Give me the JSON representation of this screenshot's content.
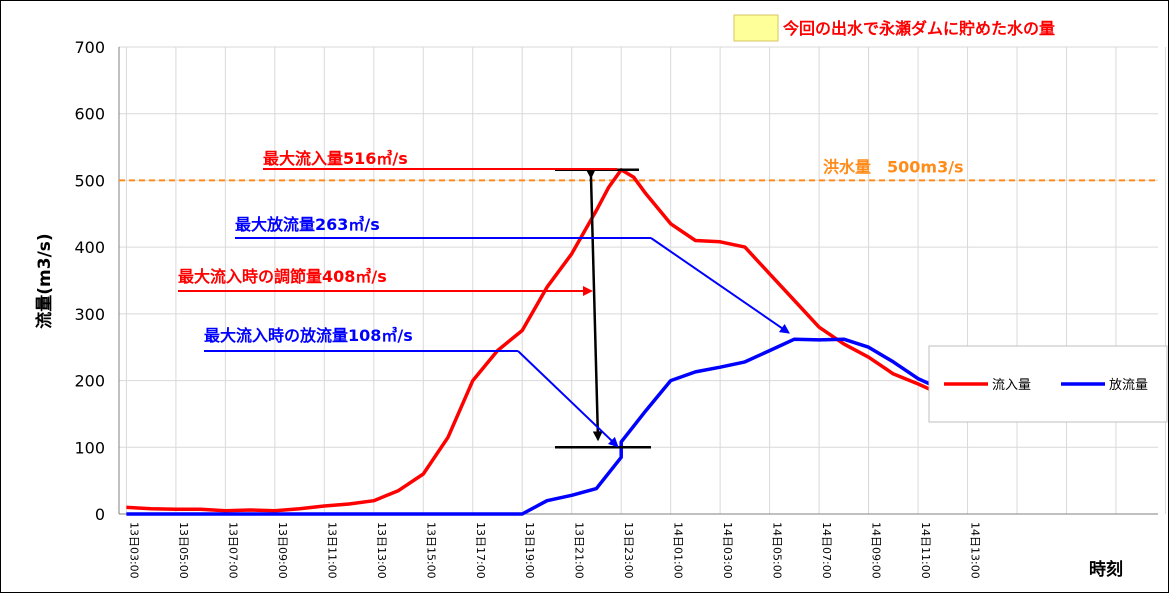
{
  "chart_data": {
    "type": "line",
    "ylabel": "流量(m3/s)",
    "xlabel": "時刻",
    "ylim": [
      0,
      700
    ],
    "yticks": [
      0,
      100,
      200,
      300,
      400,
      500,
      600,
      700
    ],
    "x_tick_labels": [
      "13日03:00",
      "13日05:00",
      "13日07:00",
      "13日09:00",
      "13日11:00",
      "13日13:00",
      "13日15:00",
      "13日17:00",
      "13日19:00",
      "13日21:00",
      "13日23:00",
      "14日01:00",
      "14日03:00",
      "14日05:00",
      "14日07:00",
      "14日09:00",
      "14日11:00",
      "14日13:00"
    ],
    "x_hours": [
      3,
      5,
      7,
      9,
      11,
      13,
      15,
      17,
      19,
      21,
      23,
      25,
      27,
      29,
      31,
      33,
      35,
      37
    ],
    "x_range_hours": [
      2.7,
      44.7
    ],
    "grid": true,
    "legend_position": "right",
    "series": [
      {
        "name": "流入量",
        "color": "#ff0000",
        "points": [
          [
            3,
            10
          ],
          [
            4,
            8
          ],
          [
            5,
            7
          ],
          [
            6,
            7
          ],
          [
            7,
            5
          ],
          [
            8,
            6
          ],
          [
            9,
            5
          ],
          [
            10,
            8
          ],
          [
            11,
            12
          ],
          [
            12,
            15
          ],
          [
            13,
            20
          ],
          [
            14,
            35
          ],
          [
            15,
            60
          ],
          [
            16,
            115
          ],
          [
            17,
            200
          ],
          [
            18,
            245
          ],
          [
            19,
            275
          ],
          [
            20,
            340
          ],
          [
            21,
            390
          ],
          [
            22,
            455
          ],
          [
            22.5,
            490
          ],
          [
            23,
            516
          ],
          [
            23.5,
            505
          ],
          [
            24,
            480
          ],
          [
            25,
            435
          ],
          [
            26,
            410
          ],
          [
            27,
            408
          ],
          [
            28,
            400
          ],
          [
            29,
            360
          ],
          [
            30,
            320
          ],
          [
            31,
            280
          ],
          [
            32,
            255
          ],
          [
            33,
            235
          ],
          [
            34,
            210
          ],
          [
            35,
            195
          ],
          [
            36,
            178
          ],
          [
            37,
            160
          ],
          [
            37.5,
            155
          ]
        ]
      },
      {
        "name": "放流量",
        "color": "#0000ff",
        "points": [
          [
            3,
            0
          ],
          [
            19,
            0
          ],
          [
            20,
            20
          ],
          [
            21,
            28
          ],
          [
            22,
            38
          ],
          [
            23,
            85
          ],
          [
            23,
            108
          ],
          [
            24,
            155
          ],
          [
            25,
            200
          ],
          [
            26,
            213
          ],
          [
            27,
            220
          ],
          [
            28,
            228
          ],
          [
            29,
            245
          ],
          [
            30,
            262
          ],
          [
            31,
            261
          ],
          [
            32,
            262
          ],
          [
            33,
            250
          ],
          [
            34,
            228
          ],
          [
            35,
            203
          ],
          [
            36,
            186
          ],
          [
            37,
            162
          ],
          [
            38,
            158
          ]
        ]
      }
    ],
    "reference_line": {
      "label": "洪水量　500m3/s",
      "value": 500,
      "color": "#ff8c1a"
    },
    "annotations": [
      {
        "text": "最大流入量516㎥/s",
        "color": "#ff0000"
      },
      {
        "text": "最大放流量263㎥/s",
        "color": "#0000ff"
      },
      {
        "text": "最大流入時の調節量408㎥/s",
        "color": "#ff0000"
      },
      {
        "text": "最大流入時の放流量108㎥/s",
        "color": "#0000ff"
      }
    ],
    "storage_legend": {
      "text": "今回の出水で永瀬ダムに貯めた水の量",
      "swatch_color": "#ffff99",
      "text_color": "#ff0000"
    }
  }
}
